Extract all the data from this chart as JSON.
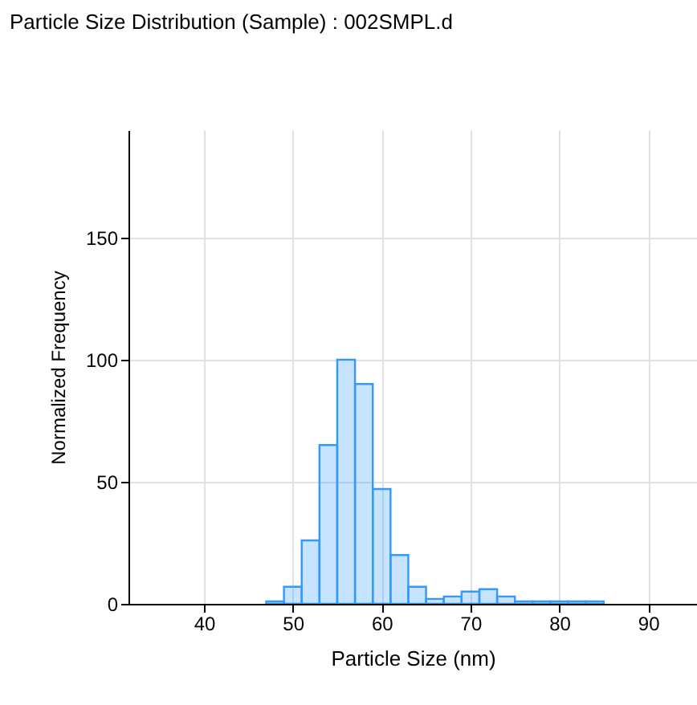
{
  "chart_data": {
    "type": "histogram",
    "title": "Particle Size Distribution (Sample) : 002SMPL.d",
    "xlabel": "Particle Size (nm)",
    "ylabel": "Normalized Frequency",
    "bins": [
      47,
      49,
      51,
      53,
      55,
      57,
      59,
      61,
      63,
      65,
      67,
      69,
      71,
      73,
      75,
      77,
      79,
      81,
      83,
      85
    ],
    "values": [
      1,
      7,
      26,
      65,
      100,
      90,
      47,
      20,
      7,
      2,
      3,
      5,
      6,
      3,
      1,
      1,
      1,
      1,
      1
    ],
    "color": "#3399ff",
    "xlim": [
      31.5,
      95.5
    ],
    "xticks": [
      40,
      50,
      60,
      70,
      80,
      90
    ],
    "ylim": [
      0,
      194
    ],
    "yticks": [
      0,
      50,
      100,
      150
    ],
    "grid": true
  }
}
